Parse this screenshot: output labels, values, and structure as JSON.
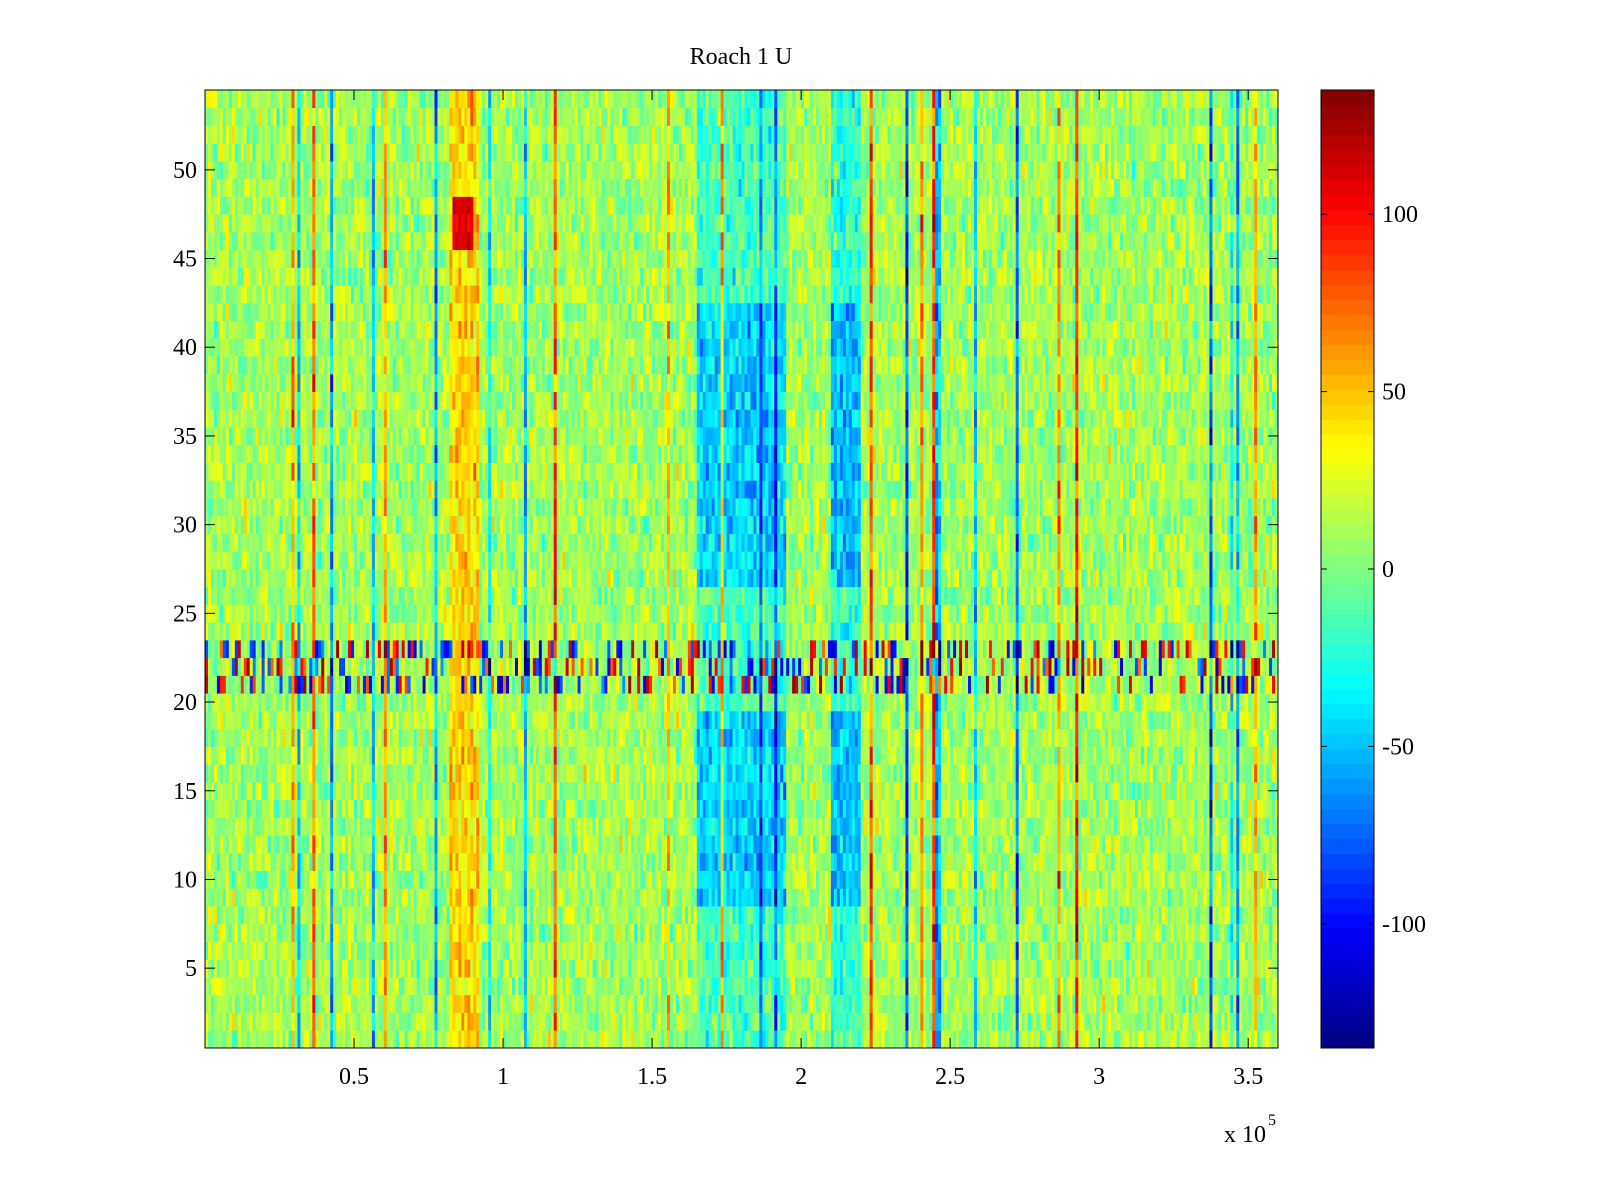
{
  "chart_data": {
    "type": "heatmap",
    "title": "Roach 1 U",
    "xlabel": "",
    "ylabel": "",
    "x_range": [
      1,
      360000
    ],
    "y_range": [
      1,
      54
    ],
    "x_ticks": [
      0.5,
      1,
      1.5,
      2,
      2.5,
      3,
      3.5
    ],
    "x_tick_labels": [
      "0.5",
      "1",
      "1.5",
      "2",
      "2.5",
      "3",
      "3.5"
    ],
    "x_multiplier_base": "x 10",
    "x_multiplier_exponent": "5",
    "y_ticks": [
      5,
      10,
      15,
      20,
      25,
      30,
      35,
      40,
      45,
      50
    ],
    "y_tick_labels": [
      "5",
      "10",
      "15",
      "20",
      "25",
      "30",
      "35",
      "40",
      "45",
      "50"
    ],
    "colormap": "jet",
    "clim": [
      -135,
      135
    ],
    "colorbar": {
      "position": "right",
      "ticks": [
        100,
        50,
        0,
        -50,
        -100
      ],
      "tick_labels": [
        "100",
        "50",
        "0",
        "-50",
        "-100"
      ]
    },
    "grid": false,
    "approximate_features": {
      "background_mean": 10,
      "low_region_1_x": [
        1.65,
        1.95
      ],
      "low_region_1_rows": [
        [
          9,
          19
        ],
        [
          27,
          42
        ]
      ],
      "low_region_1_value": -55,
      "low_region_2_x": [
        2.1,
        2.2
      ],
      "low_region_2_rows": [
        [
          9,
          19
        ],
        [
          27,
          42
        ]
      ],
      "low_region_2_value": -60,
      "high_band_x": [
        0.82,
        0.92
      ],
      "high_band_value": 35,
      "high_spot_x": [
        0.83,
        0.9
      ],
      "high_spot_rows": [
        46,
        48
      ],
      "high_spot_value": 110,
      "noisy_rows": [
        21,
        23
      ],
      "noisy_rows_range": [
        -120,
        130
      ]
    }
  }
}
